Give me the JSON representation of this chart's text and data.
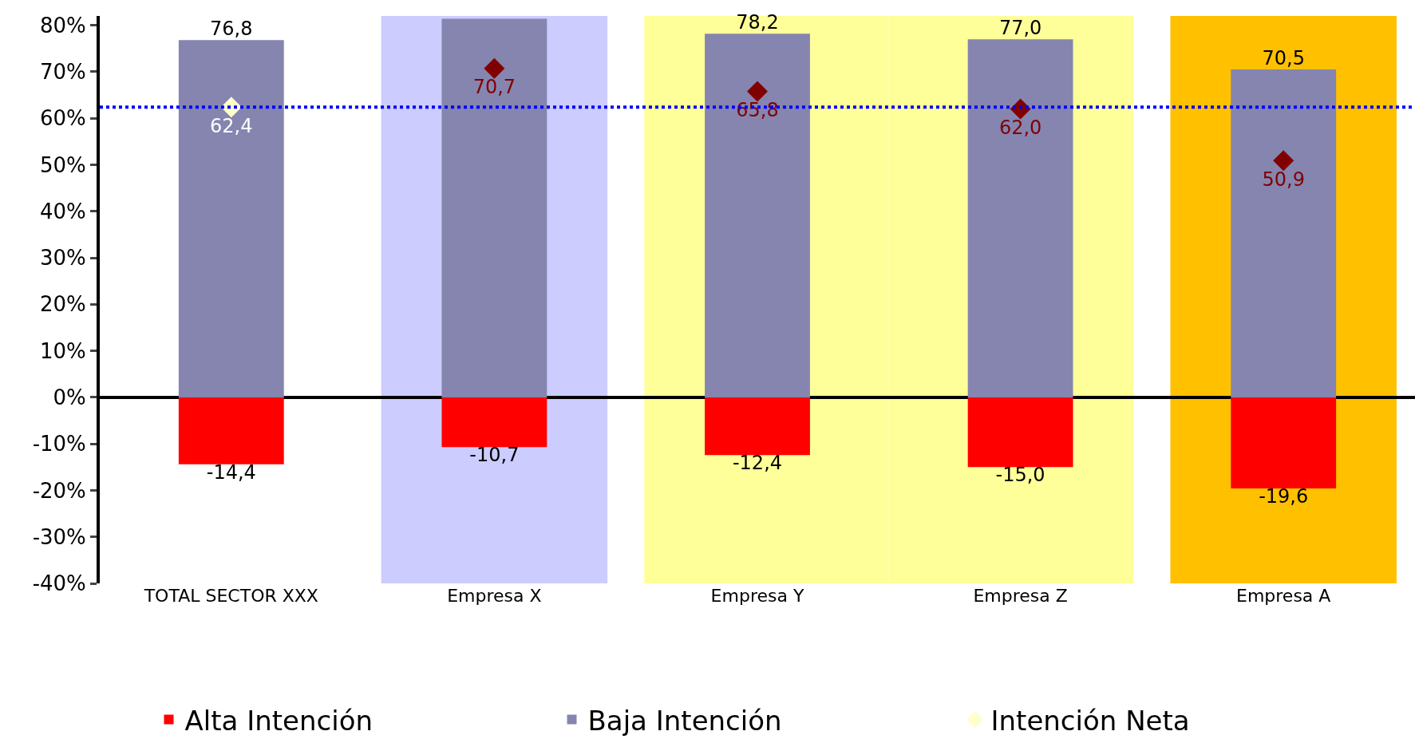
{
  "chart_data": {
    "type": "bar",
    "stacked": true,
    "categories": [
      "TOTAL SECTOR XXX",
      "Empresa X",
      "Empresa Y",
      "Empresa Z",
      "Empresa A"
    ],
    "series": [
      {
        "name": "Baja Intención",
        "color": "#8585b0",
        "values": [
          76.8,
          81.4,
          78.2,
          77.0,
          70.5
        ],
        "value_labels": [
          "76,8",
          null,
          "78,2",
          "77,0",
          "70,5"
        ]
      },
      {
        "name": "Alta Intención",
        "color": "#ff0000",
        "values": [
          -14.4,
          -10.7,
          -12.4,
          -15.0,
          -19.6
        ],
        "value_labels": [
          "-14,4",
          "-10,7",
          "-12,4",
          "-15,0",
          "-19,6"
        ]
      },
      {
        "name": "Intención Neta",
        "type": "scatter",
        "marker": "diamond",
        "colors": [
          "#ffffcc",
          "#800000",
          "#800000",
          "#800000",
          "#800000"
        ],
        "values": [
          62.4,
          70.7,
          65.8,
          62.0,
          50.9
        ],
        "value_labels": [
          "62,4",
          "70,7",
          "65,8",
          "62,0",
          "50,9"
        ]
      }
    ],
    "ylim": [
      -40,
      82
    ],
    "yticks": [
      {
        "value": -40,
        "label": "-40%"
      },
      {
        "value": -30,
        "label": "-30%"
      },
      {
        "value": -20,
        "label": "-20%"
      },
      {
        "value": -10,
        "label": "-10%"
      },
      {
        "value": 0,
        "label": "0%"
      },
      {
        "value": 10,
        "label": "10%"
      },
      {
        "value": 20,
        "label": "20%"
      },
      {
        "value": 30,
        "label": "30%"
      },
      {
        "value": 40,
        "label": "40%"
      },
      {
        "value": 50,
        "label": "50%"
      },
      {
        "value": 60,
        "label": "60%"
      },
      {
        "value": 70,
        "label": "70%"
      },
      {
        "value": 80,
        "label": "80%"
      }
    ],
    "ref_lines": [
      {
        "axis": "y",
        "value": 62.4,
        "color": "#0000ff",
        "line_style": "dotted"
      }
    ],
    "bands": [
      {
        "axis": "x",
        "from": "Empresa X",
        "to": "Empresa X",
        "color": "#ccccff"
      },
      {
        "axis": "x",
        "from": "Empresa Y",
        "to": "Empresa Y",
        "color": "#ffff99"
      },
      {
        "axis": "x",
        "from": "Empresa Z",
        "to": "Empresa Z",
        "color": "#ffff99"
      },
      {
        "axis": "x",
        "from": "Empresa A",
        "to": "Empresa A",
        "color": "#ffc000"
      }
    ],
    "legend": "bottom"
  }
}
